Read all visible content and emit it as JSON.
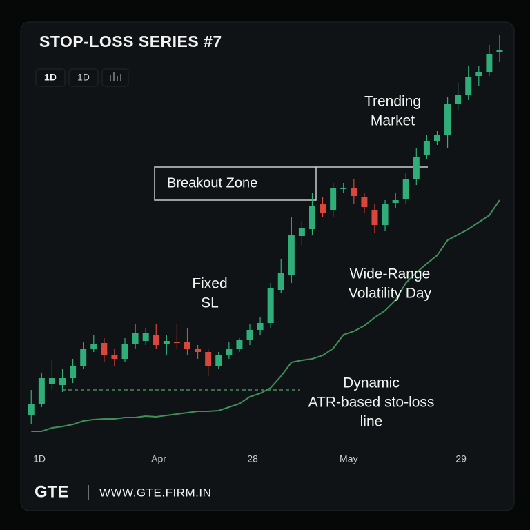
{
  "chart_data": {
    "type": "candlestick",
    "title": "STOP-LOSS SERIES #7",
    "buttons": [
      "1D",
      "1D"
    ],
    "x": [
      0,
      1,
      2,
      3,
      4,
      5,
      6,
      7,
      8,
      9,
      10,
      11,
      12,
      13,
      14,
      15,
      16,
      17,
      18,
      19,
      20,
      21,
      22,
      23,
      24,
      25,
      26,
      27,
      28,
      29,
      30,
      31,
      32,
      33,
      34,
      35,
      36,
      37,
      38,
      39,
      40,
      41,
      42,
      43,
      44,
      45
    ],
    "open": [
      98,
      115,
      143,
      142,
      152,
      170,
      195,
      203,
      185,
      180,
      202,
      206,
      215,
      202,
      205,
      205,
      195,
      190,
      170,
      185,
      195,
      207,
      222,
      232,
      280,
      302,
      358,
      368,
      404,
      395,
      426,
      428,
      415,
      395,
      374,
      406,
      412,
      440,
      475,
      495,
      505,
      550,
      562,
      590,
      596,
      624
    ],
    "high": [
      135,
      160,
      178,
      165,
      180,
      205,
      215,
      210,
      195,
      210,
      230,
      225,
      230,
      215,
      230,
      225,
      200,
      195,
      190,
      205,
      210,
      230,
      240,
      290,
      325,
      385,
      380,
      420,
      415,
      435,
      435,
      440,
      420,
      405,
      410,
      420,
      450,
      485,
      505,
      510,
      560,
      580,
      605,
      605,
      635,
      650
    ],
    "low": [
      85,
      110,
      135,
      132,
      145,
      165,
      190,
      175,
      170,
      175,
      195,
      200,
      195,
      185,
      195,
      185,
      180,
      155,
      165,
      180,
      190,
      200,
      215,
      225,
      275,
      290,
      345,
      360,
      385,
      385,
      420,
      405,
      392,
      362,
      365,
      398,
      405,
      432,
      470,
      490,
      485,
      540,
      555,
      575,
      590,
      610
    ],
    "close": [
      115,
      152,
      152,
      152,
      170,
      195,
      202,
      185,
      180,
      202,
      218,
      218,
      200,
      206,
      203,
      195,
      190,
      170,
      185,
      195,
      207,
      222,
      232,
      282,
      305,
      360,
      370,
      402,
      392,
      428,
      428,
      416,
      400,
      374,
      404,
      410,
      440,
      472,
      495,
      505,
      550,
      562,
      588,
      595,
      622,
      627
    ],
    "up_color": "#2fae7a",
    "down_color": "#d9463b",
    "lines": [
      {
        "color": "#3f8f5a",
        "values": [
          75,
          75,
          80,
          82,
          85,
          90,
          92,
          93,
          93,
          95,
          95,
          97,
          96,
          98,
          100,
          102,
          104,
          104,
          105,
          110,
          115,
          125,
          130,
          138,
          155,
          175,
          178,
          180,
          185,
          195,
          215,
          220,
          228,
          240,
          250,
          265,
          290,
          305,
          318,
          330,
          352,
          360,
          368,
          378,
          388,
          410
        ]
      }
    ],
    "levels": [
      {
        "value": 135,
        "color": "#3f8f5a"
      }
    ],
    "xlim": [
      -0.35,
      45.4
    ],
    "ylim": [
      60,
      660
    ],
    "xticks": [
      {
        "value": 0.78,
        "label": "1D"
      },
      {
        "value": 12.25,
        "label": "Apr"
      },
      {
        "value": 21.27,
        "label": "28"
      },
      {
        "value": 30.5,
        "label": "May"
      },
      {
        "value": 41.3,
        "label": "29"
      }
    ],
    "annotations": [
      {
        "lines": [
          "Breakout Zone"
        ]
      },
      {
        "lines": [
          "Trending",
          "Market"
        ]
      },
      {
        "lines": [
          "Fixed",
          "SL"
        ]
      },
      {
        "lines": [
          "Wide-Range",
          "Volatility Day"
        ]
      },
      {
        "lines": [
          "Dynamic",
          "ATR-based sto-loss",
          "line"
        ]
      }
    ]
  },
  "footer": {
    "brand": "GTE",
    "url": "WWW.GTE.FIRM.IN"
  }
}
